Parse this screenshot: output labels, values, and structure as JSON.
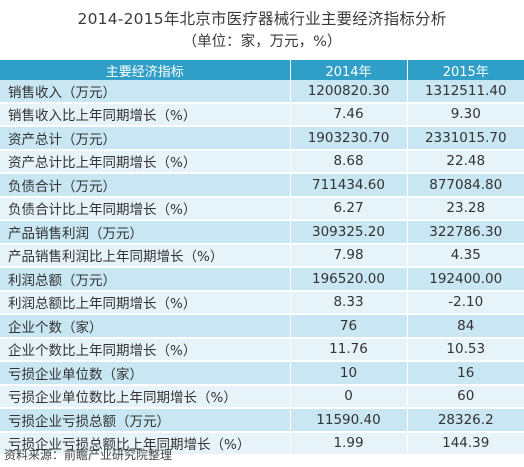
{
  "title": "2014-2015年北京市医疗器械行业主要经济指标分析",
  "subtitle": "（单位：家，万元，%）",
  "table": {
    "headers": [
      "主要经济指标",
      "2014年",
      "2015年"
    ],
    "rows": [
      [
        "销售收入（万元）",
        "1200820.30",
        "1312511.40"
      ],
      [
        "销售收入比上年同期增长（%）",
        "7.46",
        "9.30"
      ],
      [
        "资产总计（万元）",
        "1903230.70",
        "2331015.70"
      ],
      [
        "资产总计比上年同期增长（%）",
        "8.68",
        "22.48"
      ],
      [
        "负债合计（万元）",
        "711434.60",
        "877084.80"
      ],
      [
        "负债合计比上年同期增长（%）",
        "6.27",
        "23.28"
      ],
      [
        "产品销售利润（万元）",
        "309325.20",
        "322786.30"
      ],
      [
        "产品销售利润比上年同期增长（%）",
        "7.98",
        "4.35"
      ],
      [
        "利润总额（万元）",
        "196520.00",
        "192400.00"
      ],
      [
        "利润总额比上年同期增长（%）",
        "8.33",
        "-2.10"
      ],
      [
        "企业个数（家）",
        "76",
        "84"
      ],
      [
        "企业个数比上年同期增长（%）",
        "11.76",
        "10.53"
      ],
      [
        "亏损企业单位数（家）",
        "10",
        "16"
      ],
      [
        "亏损企业单位数比上年同期增长（%）",
        "0",
        "60"
      ],
      [
        "亏损企业亏损总额（万元）",
        "11590.40",
        "28326.2"
      ],
      [
        "亏损企业亏损总额比上年同期增长（%）",
        "1.99",
        "144.39"
      ]
    ]
  },
  "source": "资料来源：前瞻产业研究院整理",
  "colors": {
    "header_bg": "#2f9fc8",
    "row_dark": "#c9e6f3",
    "row_light": "#e6f3f9"
  }
}
